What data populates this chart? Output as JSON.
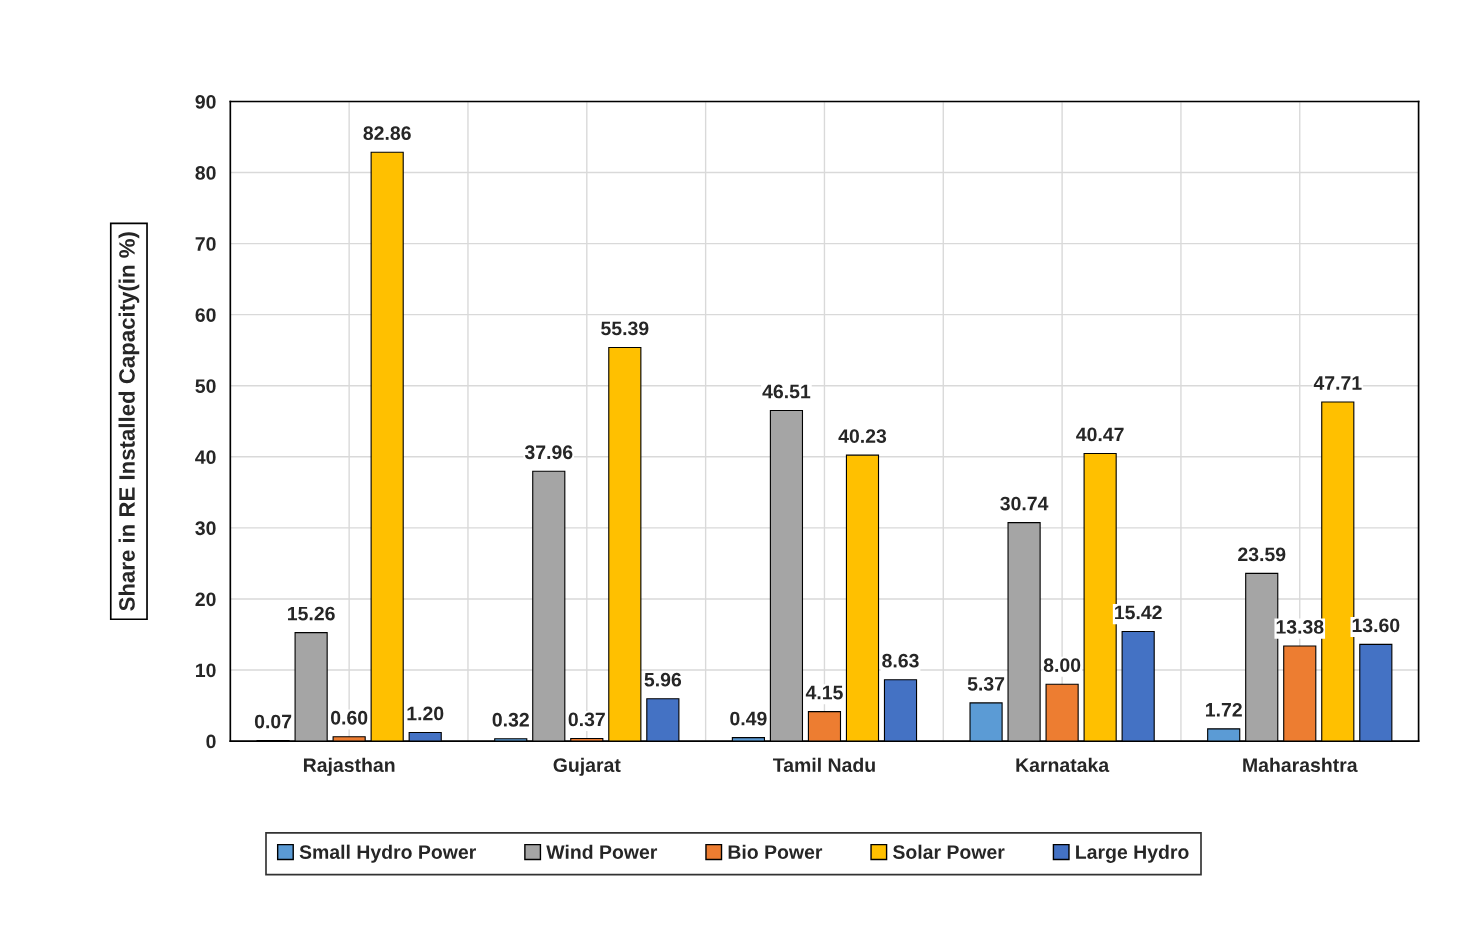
{
  "chart_data": {
    "type": "bar",
    "ylabel": "Share in RE Installed Capacity(in %)",
    "categories": [
      "Rajasthan",
      "Gujarat",
      "Tamil Nadu",
      "Karnataka",
      "Maharashtra"
    ],
    "series": [
      {
        "name": "Small Hydro Power",
        "color": "#5b9bd5",
        "values": [
          0.07,
          0.32,
          0.49,
          5.37,
          1.72
        ],
        "value_labels": [
          "0.07",
          "0.32",
          "0.49",
          "5.37",
          "1.72"
        ]
      },
      {
        "name": "Wind Power",
        "color": "#a5a5a5",
        "values": [
          15.26,
          37.96,
          46.51,
          30.74,
          23.59
        ],
        "value_labels": [
          "15.26",
          "37.96",
          "46.51",
          "30.74",
          "23.59"
        ]
      },
      {
        "name": "Bio Power",
        "color": "#ed7d31",
        "values": [
          0.6,
          0.37,
          4.15,
          8.0,
          13.38
        ],
        "value_labels": [
          "0.60",
          "0.37",
          "4.15",
          "8.00",
          "13.38"
        ]
      },
      {
        "name": "Solar Power",
        "color": "#ffc000",
        "values": [
          82.86,
          55.39,
          40.23,
          40.47,
          47.71
        ],
        "value_labels": [
          "82.86",
          "55.39",
          "40.23",
          "40.47",
          "47.71"
        ]
      },
      {
        "name": "Large Hydro",
        "color": "#4472c4",
        "values": [
          1.2,
          5.96,
          8.63,
          15.42,
          13.6
        ],
        "value_labels": [
          "1.20",
          "5.96",
          "8.63",
          "15.42",
          "13.60"
        ]
      }
    ],
    "ylim": [
      0,
      90
    ],
    "yticks": [
      0,
      10,
      20,
      30,
      40,
      50,
      60,
      70,
      80,
      90
    ],
    "grid": true,
    "legend": "bottom"
  }
}
